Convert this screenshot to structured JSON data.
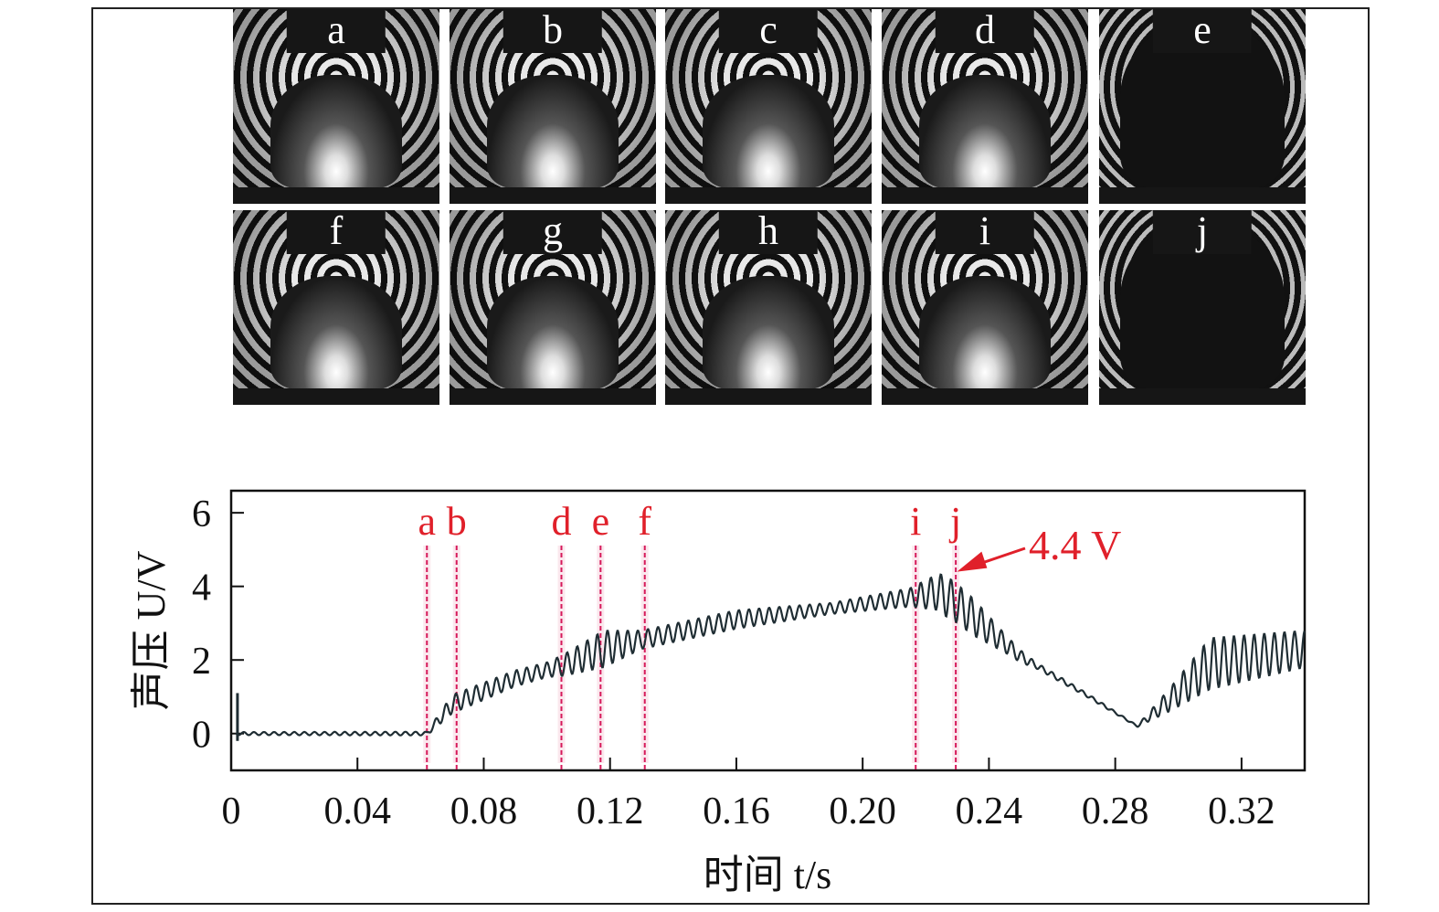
{
  "panels": {
    "labels": [
      "a",
      "b",
      "c",
      "d",
      "e",
      "f",
      "g",
      "h",
      "i",
      "j"
    ]
  },
  "chart_data": {
    "type": "line",
    "xlabel": "时间 t/s",
    "ylabel": "声压 U/V",
    "xlim": [
      0,
      0.34
    ],
    "ylim": [
      -1,
      6.6
    ],
    "xticks": [
      0,
      0.04,
      0.08,
      0.12,
      0.16,
      0.2,
      0.24,
      0.28,
      0.32
    ],
    "xtick_labels": [
      "0",
      "0.04",
      "0.08",
      "0.12",
      "0.16",
      "0.20",
      "0.24",
      "0.28",
      "0.32"
    ],
    "yticks": [
      0,
      2,
      4,
      6
    ],
    "ytick_labels": [
      "0",
      "2",
      "4",
      "6"
    ],
    "grid": false,
    "series": [
      {
        "name": "声压",
        "trend": [
          [
            0,
            0
          ],
          [
            0.062,
            0
          ],
          [
            0.07,
            0.8
          ],
          [
            0.09,
            1.5
          ],
          [
            0.105,
            1.85
          ],
          [
            0.118,
            2.3
          ],
          [
            0.13,
            2.55
          ],
          [
            0.16,
            3.1
          ],
          [
            0.19,
            3.4
          ],
          [
            0.215,
            3.7
          ],
          [
            0.224,
            3.85
          ],
          [
            0.229,
            3.6
          ],
          [
            0.236,
            3.1
          ],
          [
            0.25,
            2.1
          ],
          [
            0.27,
            1.1
          ],
          [
            0.287,
            0.2
          ],
          [
            0.297,
            0.9
          ],
          [
            0.31,
            1.9
          ],
          [
            0.34,
            2.3
          ]
        ],
        "amplitude": [
          [
            0,
            0.04
          ],
          [
            0.062,
            0.05
          ],
          [
            0.07,
            0.25
          ],
          [
            0.1,
            0.2
          ],
          [
            0.118,
            0.5
          ],
          [
            0.13,
            0.25
          ],
          [
            0.16,
            0.25
          ],
          [
            0.19,
            0.15
          ],
          [
            0.215,
            0.25
          ],
          [
            0.226,
            0.55
          ],
          [
            0.235,
            0.5
          ],
          [
            0.245,
            0.25
          ],
          [
            0.255,
            0.08
          ],
          [
            0.287,
            0.02
          ],
          [
            0.297,
            0.3
          ],
          [
            0.31,
            0.7
          ],
          [
            0.34,
            0.5
          ]
        ]
      }
    ],
    "markers": [
      {
        "label": "a",
        "t": 0.062
      },
      {
        "label": "b",
        "t": 0.0714
      },
      {
        "label": "d",
        "t": 0.1046
      },
      {
        "label": "e",
        "t": 0.117
      },
      {
        "label": "f",
        "t": 0.131
      },
      {
        "label": "i",
        "t": 0.2168
      },
      {
        "label": "j",
        "t": 0.2295
      }
    ],
    "annotation": {
      "text": "4.4 V",
      "t": 0.229,
      "u": 4.4
    },
    "colors": {
      "line": "#1f2d33",
      "marker": "#d6195a",
      "label": "#e0202a"
    }
  }
}
